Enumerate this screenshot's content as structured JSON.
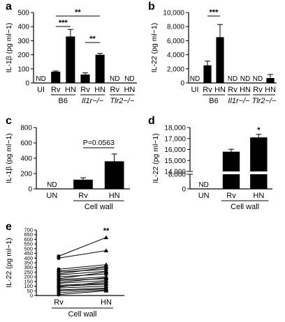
{
  "chart_data": [
    {
      "panel": "a",
      "type": "bar",
      "ylabel": "IL-1β (pg ml−1)",
      "ylim": [
        0,
        500
      ],
      "yticks": [
        "0",
        "100",
        "200",
        "300",
        "400",
        "500"
      ],
      "categories": [
        "UI",
        "Rv",
        "HN",
        "Rv",
        "HN",
        "Rv",
        "HN"
      ],
      "groups": [
        {
          "label": "B6",
          "italic": false
        },
        {
          "label": "Il1r−/−",
          "italic": true
        },
        {
          "label": "Tlr2−/−",
          "italic": true
        }
      ],
      "values": [
        null,
        80,
        330,
        60,
        200,
        null,
        null
      ],
      "errors": [
        0,
        5,
        50,
        12,
        10,
        0,
        0
      ],
      "nd_label": "ND",
      "significance": [
        "***",
        "**",
        "**"
      ]
    },
    {
      "panel": "b",
      "type": "bar",
      "ylabel": "IL-22 (pg ml−1)",
      "ylim": [
        0,
        10000
      ],
      "yticks": [
        "0",
        "2,000",
        "4,000",
        "6,000",
        "8,000",
        "10,000"
      ],
      "categories": [
        "UI",
        "Rv",
        "HN",
        "Rv",
        "HN",
        "Rv",
        "HN"
      ],
      "groups": [
        {
          "label": "B6",
          "italic": false
        },
        {
          "label": "Il1r−/−",
          "italic": true
        },
        {
          "label": "Tlr2−/−",
          "italic": true
        }
      ],
      "values": [
        null,
        2500,
        6500,
        null,
        null,
        null,
        700
      ],
      "errors": [
        0,
        600,
        1800,
        0,
        0,
        0,
        500
      ],
      "nd_label": "ND",
      "significance": [
        "***"
      ]
    },
    {
      "panel": "c",
      "type": "bar",
      "ylabel": "IL-1β (pg ml−1)",
      "ylim": [
        0,
        800
      ],
      "yticks": [
        "0",
        "200",
        "400",
        "600",
        "800"
      ],
      "categories": [
        "UN",
        "Rv",
        "HN"
      ],
      "group_label": "Cell wall",
      "values": [
        null,
        120,
        360
      ],
      "errors": [
        0,
        25,
        95
      ],
      "nd_label": "ND",
      "p_value": "P=0.0563"
    },
    {
      "panel": "d",
      "type": "bar",
      "ylabel": "IL-22 (pg ml−1)",
      "ylim": [
        0,
        18000
      ],
      "axis_break": [
        8000,
        14000
      ],
      "yticks": [
        "0",
        "8,000",
        "14,000",
        "15,000",
        "16,000",
        "17,000",
        "18,000"
      ],
      "categories": [
        "UN",
        "Rv",
        "HN"
      ],
      "group_label": "Cell wall",
      "values": [
        null,
        15800,
        17100
      ],
      "errors": [
        0,
        220,
        280
      ],
      "nd_label": "ND",
      "significance": [
        "*"
      ]
    },
    {
      "panel": "e",
      "type": "line",
      "ylabel": "IL-22 (pg ml−1)",
      "ylim": [
        0,
        700
      ],
      "yticks": [
        "0",
        "50",
        "100",
        "150",
        "200",
        "250",
        "300",
        "350",
        "400",
        "450",
        "500",
        "550",
        "600",
        "650",
        "700"
      ],
      "categories": [
        "Rv",
        "HN"
      ],
      "group_label": "Cell wall",
      "significance": [
        "**"
      ],
      "pairs": [
        [
          420,
          620
        ],
        [
          400,
          480
        ],
        [
          280,
          330
        ],
        [
          260,
          310
        ],
        [
          250,
          280
        ],
        [
          230,
          300
        ],
        [
          220,
          260
        ],
        [
          200,
          230
        ],
        [
          180,
          250
        ],
        [
          170,
          200
        ],
        [
          160,
          180
        ],
        [
          140,
          190
        ],
        [
          130,
          160
        ],
        [
          110,
          130
        ],
        [
          100,
          120
        ],
        [
          90,
          150
        ],
        [
          80,
          100
        ],
        [
          60,
          80
        ],
        [
          50,
          70
        ],
        [
          30,
          60
        ],
        [
          10,
          50
        ]
      ]
    }
  ]
}
